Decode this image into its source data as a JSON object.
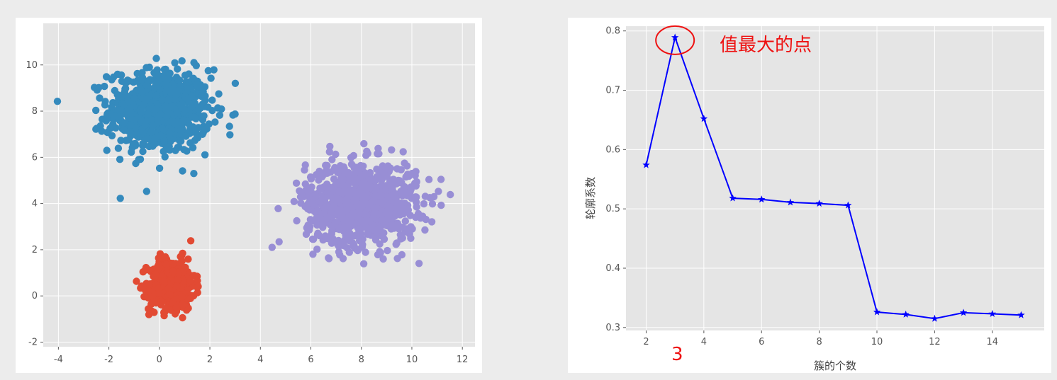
{
  "colors": {
    "plot_bg": "#e5e5e5",
    "grid": "#ffffff",
    "cluster_blue": "#348abd",
    "cluster_red": "#e24a33",
    "cluster_purple": "#988ed5",
    "line": "#0000ff",
    "annotation": "#ee1111"
  },
  "chart_data": [
    {
      "type": "scatter",
      "xlim": [
        -4.6,
        12.5
      ],
      "ylim": [
        -2.2,
        11.8
      ],
      "xticks": [
        -4,
        -2,
        0,
        2,
        4,
        6,
        8,
        10,
        12
      ],
      "yticks": [
        -2,
        0,
        2,
        4,
        6,
        8,
        10
      ],
      "xticklabels": [
        "-4",
        "-2",
        "0",
        "2",
        "4",
        "6",
        "8",
        "10",
        "12"
      ],
      "yticklabels": [
        "-2",
        "0",
        "2",
        "4",
        "6",
        "8",
        "10"
      ],
      "grid": true,
      "series": [
        {
          "color": "#348abd",
          "center": [
            0,
            8
          ],
          "std": [
            1.0,
            0.9
          ],
          "n": 700
        },
        {
          "color": "#e24a33",
          "center": [
            0.5,
            0.5
          ],
          "std": [
            0.45,
            0.55
          ],
          "n": 500
        },
        {
          "color": "#988ed5",
          "center": [
            8,
            4
          ],
          "std": [
            1.1,
            0.9
          ],
          "n": 900
        }
      ]
    },
    {
      "type": "line",
      "marker": "star",
      "color": "#0000ff",
      "x": [
        2,
        3,
        4,
        5,
        6,
        7,
        8,
        9,
        10,
        11,
        12,
        13,
        14,
        15
      ],
      "y": [
        0.574,
        0.789,
        0.652,
        0.518,
        0.516,
        0.511,
        0.509,
        0.506,
        0.326,
        0.322,
        0.315,
        0.325,
        0.323,
        0.321
      ],
      "xlim": [
        1.3,
        15.8
      ],
      "ylim": [
        0.295,
        0.808
      ],
      "xticks": [
        2,
        4,
        6,
        8,
        10,
        12,
        14
      ],
      "yticks": [
        0.3,
        0.4,
        0.5,
        0.6,
        0.7,
        0.8
      ],
      "xticklabels": [
        "2",
        "4",
        "6",
        "8",
        "10",
        "12",
        "14"
      ],
      "yticklabels": [
        "0.3",
        "0.4",
        "0.5",
        "0.6",
        "0.7",
        "0.8"
      ],
      "xlabel": "簇的个数",
      "ylabel": "轮廓系数",
      "grid": true,
      "annotations": {
        "max_text": "值最大的点",
        "max_x_label": "3",
        "max_point": [
          3,
          0.789
        ]
      }
    }
  ]
}
